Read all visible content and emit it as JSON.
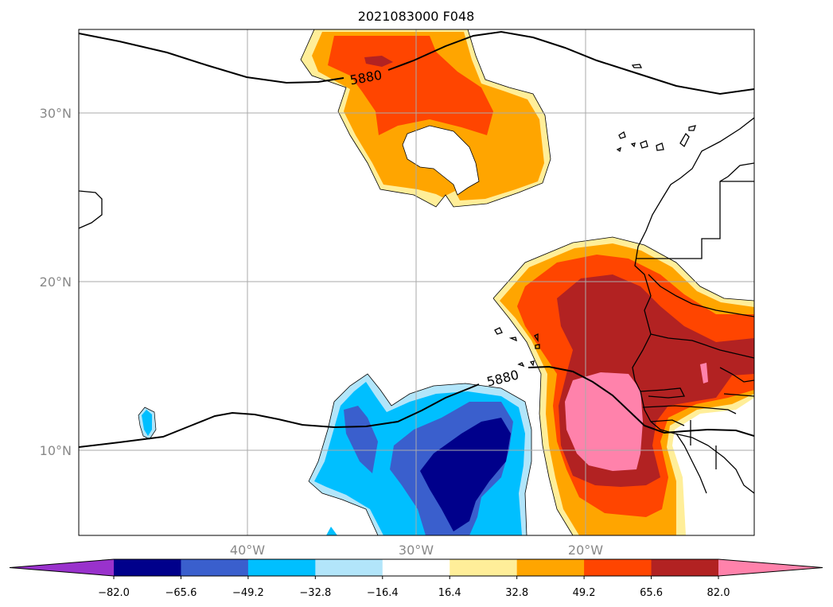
{
  "title": "2021083000 F048",
  "map": {
    "lat_labels": [
      "30°N",
      "20°N",
      "10°N"
    ],
    "lon_labels": [
      "40°W",
      "30°W",
      "20°W"
    ],
    "contour_level": "5880",
    "contour_labels": [
      "5880",
      "5880"
    ]
  },
  "colorbar": {
    "ticks": [
      "−82.0",
      "−65.6",
      "−49.2",
      "−32.8",
      "−16.4",
      "16.4",
      "32.8",
      "49.2",
      "65.6",
      "82.0"
    ],
    "colors": [
      "#9932CC",
      "#00008B",
      "#3A5FCD",
      "#00BFFF",
      "#B2E5FA",
      "#FFFFFF",
      "#FFEE99",
      "#FFA500",
      "#FF4500",
      "#B22222",
      "#FF82AB"
    ]
  }
}
